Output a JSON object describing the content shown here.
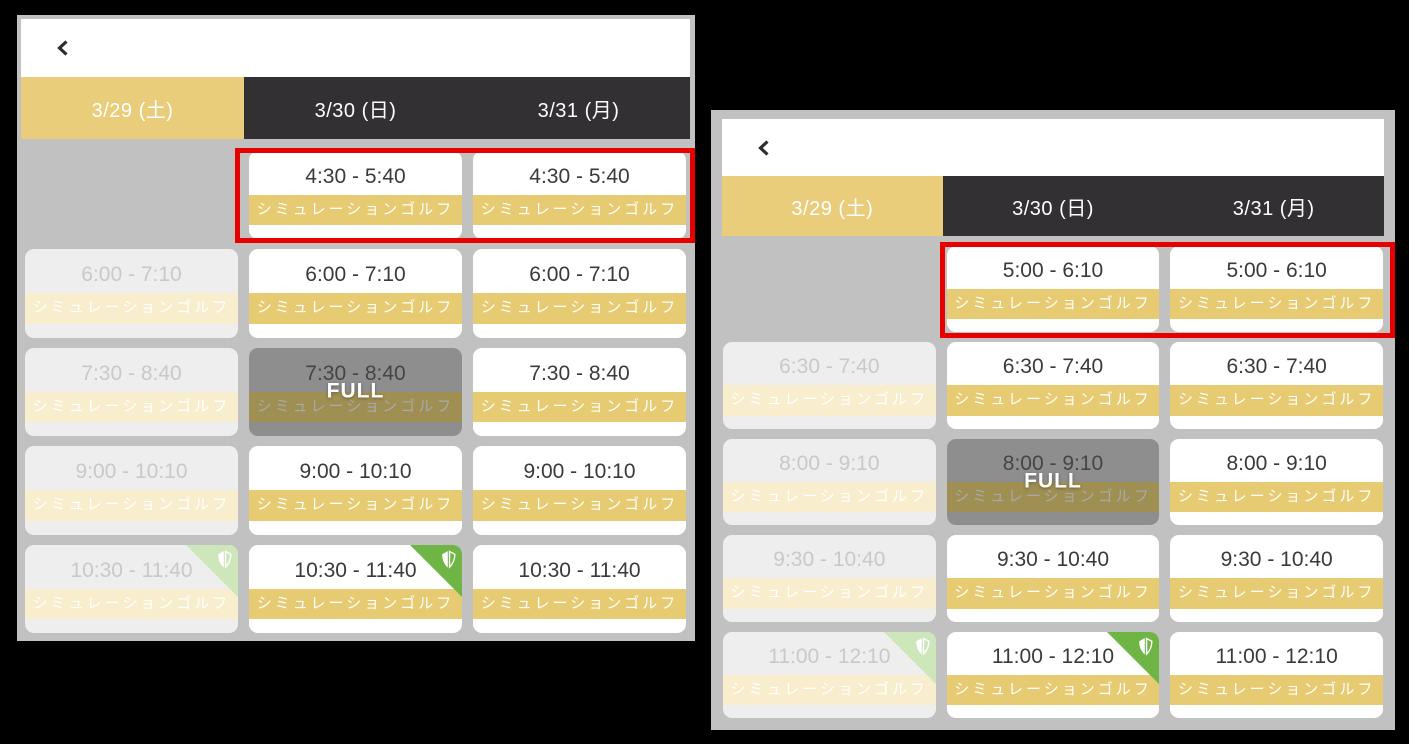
{
  "service_label": "シミュレーションゴルフ",
  "full_label": "FULL",
  "colors": {
    "accent_gold": "#e9cd7b",
    "badge_gold": "#e7cb72",
    "tab_dark": "#323032",
    "panel_gray": "#c1c1c1",
    "full_gray": "#8e8e8e",
    "highlight_red": "#e60000",
    "ribbon_green": "#6fb545",
    "ribbon_pale_green": "#cde6ba"
  },
  "panels": [
    {
      "name": "left",
      "tabs": [
        {
          "label": "3/29 (土)",
          "active": true
        },
        {
          "label": "3/30 (日)",
          "active": false
        },
        {
          "label": "3/31 (月)",
          "active": false
        }
      ],
      "highlighted_row": 0,
      "rows": [
        {
          "time": "4:30 - 5:40",
          "cells": [
            "empty",
            "available",
            "available"
          ],
          "ribbons": [
            "none",
            "none",
            "none"
          ]
        },
        {
          "time": "6:00 - 7:10",
          "cells": [
            "disabled",
            "available",
            "available"
          ],
          "ribbons": [
            "none",
            "none",
            "none"
          ]
        },
        {
          "time": "7:30 - 8:40",
          "cells": [
            "disabled",
            "full",
            "available"
          ],
          "ribbons": [
            "none",
            "none",
            "none"
          ]
        },
        {
          "time": "9:00 - 10:10",
          "cells": [
            "disabled",
            "available",
            "available"
          ],
          "ribbons": [
            "none",
            "none",
            "none"
          ]
        },
        {
          "time": "10:30 - 11:40",
          "cells": [
            "disabled",
            "available",
            "available"
          ],
          "ribbons": [
            "pale",
            "green",
            "none"
          ]
        }
      ]
    },
    {
      "name": "right",
      "tabs": [
        {
          "label": "3/29 (土)",
          "active": true
        },
        {
          "label": "3/30 (日)",
          "active": false
        },
        {
          "label": "3/31 (月)",
          "active": false
        }
      ],
      "highlighted_row": 0,
      "rows": [
        {
          "time": "5:00 - 6:10",
          "cells": [
            "empty",
            "available",
            "available"
          ],
          "ribbons": [
            "none",
            "none",
            "none"
          ]
        },
        {
          "time": "6:30 - 7:40",
          "cells": [
            "disabled",
            "available",
            "available"
          ],
          "ribbons": [
            "none",
            "none",
            "none"
          ]
        },
        {
          "time": "8:00 - 9:10",
          "cells": [
            "disabled",
            "full",
            "available"
          ],
          "ribbons": [
            "none",
            "none",
            "none"
          ]
        },
        {
          "time": "9:30 - 10:40",
          "cells": [
            "disabled",
            "available",
            "available"
          ],
          "ribbons": [
            "none",
            "none",
            "none"
          ]
        },
        {
          "time": "11:00 - 12:10",
          "cells": [
            "disabled",
            "available",
            "available"
          ],
          "ribbons": [
            "pale",
            "green",
            "none"
          ]
        }
      ]
    }
  ]
}
